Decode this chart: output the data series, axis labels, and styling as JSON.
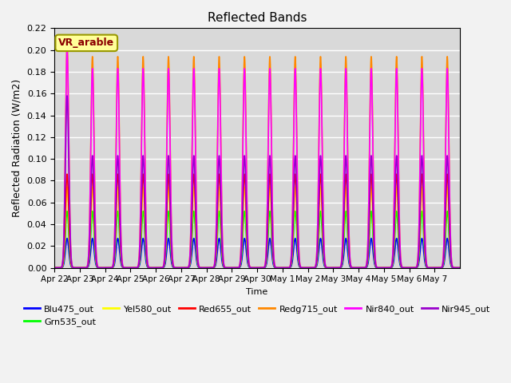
{
  "title": "Reflected Bands",
  "ylabel": "Reflected Radiation (W/m2)",
  "xlabel": "Time",
  "annotation": "VR_arable",
  "ylim": [
    0,
    0.22
  ],
  "series": [
    {
      "label": "Blu475_out",
      "color": "#0000ff",
      "peak": 0.027,
      "lw": 1.2
    },
    {
      "label": "Grn535_out",
      "color": "#00ff00",
      "peak": 0.052,
      "lw": 1.2
    },
    {
      "label": "Yel580_out",
      "color": "#ffff00",
      "peak": 0.074,
      "lw": 1.2
    },
    {
      "label": "Red655_out",
      "color": "#ff0000",
      "peak": 0.086,
      "lw": 1.2
    },
    {
      "label": "Redg715_out",
      "color": "#ff8800",
      "peak": 0.194,
      "lw": 1.2
    },
    {
      "label": "Nir840_out",
      "color": "#ff00ff",
      "peak": 0.183,
      "lw": 1.2
    },
    {
      "label": "Nir945_out",
      "color": "#9900cc",
      "peak": 0.103,
      "lw": 1.2
    }
  ],
  "first_peaks": {
    "Nir840_out": 0.2,
    "Redg715_out": 0.207,
    "Nir945_out": 0.158
  },
  "n_days": 16,
  "plot_bg": "#d9d9d9",
  "fig_bg": "#f2f2f2",
  "grid_color": "#ffffff",
  "xtick_labels": [
    "Apr 22",
    "Apr 23",
    "Apr 24",
    "Apr 25",
    "Apr 26",
    "Apr 27",
    "Apr 28",
    "Apr 29",
    "Apr 30",
    "May 1",
    "May 2",
    "May 3",
    "May 4",
    "May 5",
    "May 6",
    "May 7"
  ],
  "figsize": [
    6.4,
    4.8
  ],
  "dpi": 100
}
